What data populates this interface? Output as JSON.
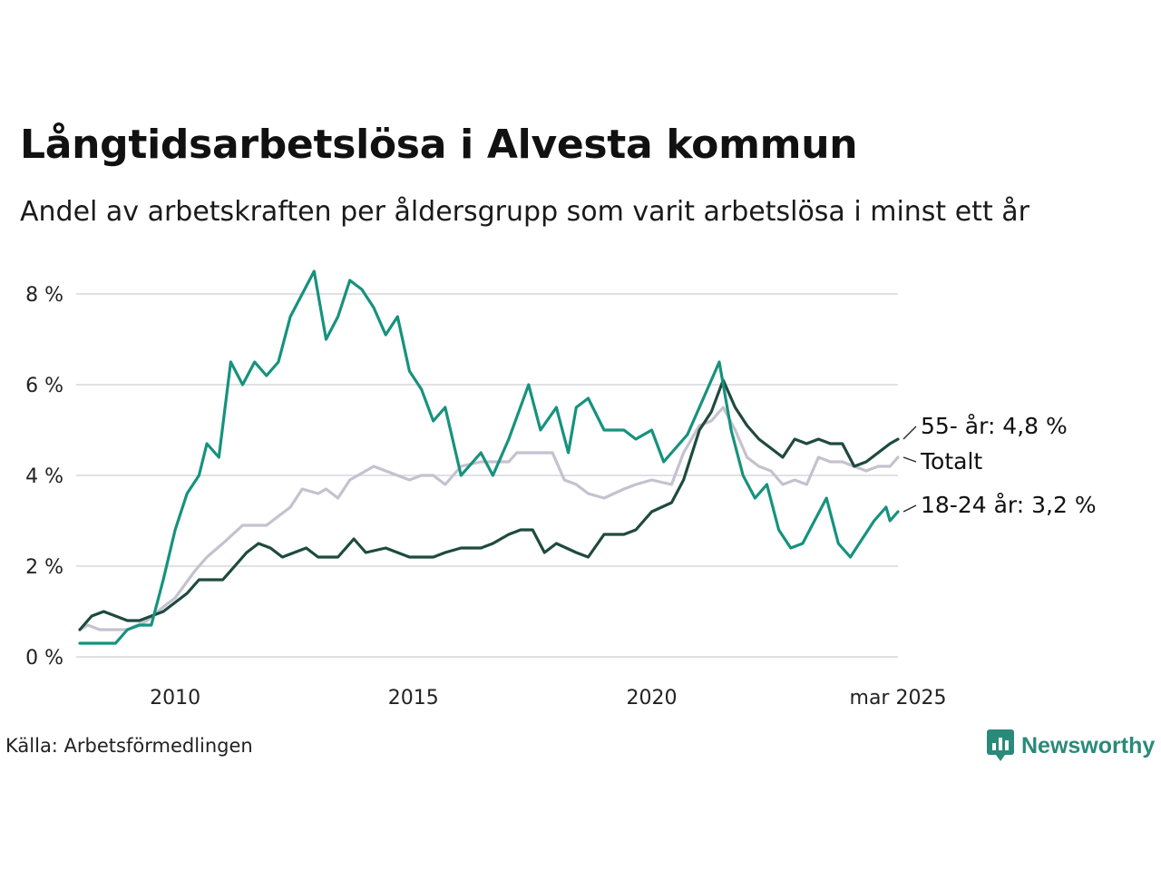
{
  "title": "Långtidsarbetslösa i Alvesta kommun",
  "subtitle": "Andel av arbetskraften per åldersgrupp som varit arbetslösa i minst ett år",
  "source": "Källa: Arbetsförmedlingen",
  "logo": {
    "text": "Newsworthy",
    "icon": "newsworthy-chart-bubble-icon",
    "color": "#2a8a7a"
  },
  "chart_data": {
    "type": "line",
    "x_axis": {
      "range": [
        "2008-01",
        "2025-03"
      ],
      "ticks": [
        {
          "label": "2010",
          "date": "2010-01"
        },
        {
          "label": "2015",
          "date": "2015-01"
        },
        {
          "label": "2020",
          "date": "2020-01"
        },
        {
          "label": "mar 2025",
          "date": "2025-03"
        }
      ]
    },
    "y_axis": {
      "range": [
        0,
        8.5
      ],
      "ticks": [
        {
          "value": 0,
          "label": "0 %"
        },
        {
          "value": 2,
          "label": "2 %"
        },
        {
          "value": 4,
          "label": "4 %"
        },
        {
          "value": 6,
          "label": "6 %"
        },
        {
          "value": 8,
          "label": "8 %"
        }
      ]
    },
    "grid": "horizontal",
    "legend": "end-of-line labels",
    "series": [
      {
        "name": "Totalt",
        "label": "Totalt",
        "color": "#c4c2cf",
        "points": [
          [
            "2008-01",
            0.6
          ],
          [
            "2008-03",
            0.7
          ],
          [
            "2008-06",
            0.6
          ],
          [
            "2009-01",
            0.6
          ],
          [
            "2009-06",
            0.8
          ],
          [
            "2009-10",
            1.1
          ],
          [
            "2010-01",
            1.3
          ],
          [
            "2010-06",
            1.9
          ],
          [
            "2010-09",
            2.2
          ],
          [
            "2011-01",
            2.5
          ],
          [
            "2011-06",
            2.9
          ],
          [
            "2011-12",
            2.9
          ],
          [
            "2012-03",
            3.1
          ],
          [
            "2012-06",
            3.3
          ],
          [
            "2012-09",
            3.7
          ],
          [
            "2013-01",
            3.6
          ],
          [
            "2013-03",
            3.7
          ],
          [
            "2013-06",
            3.5
          ],
          [
            "2013-09",
            3.9
          ],
          [
            "2014-01",
            4.1
          ],
          [
            "2014-03",
            4.2
          ],
          [
            "2014-06",
            4.1
          ],
          [
            "2014-12",
            3.9
          ],
          [
            "2015-03",
            4.0
          ],
          [
            "2015-06",
            4.0
          ],
          [
            "2015-09",
            3.8
          ],
          [
            "2016-01",
            4.2
          ],
          [
            "2016-06",
            4.3
          ],
          [
            "2017-01",
            4.3
          ],
          [
            "2017-03",
            4.5
          ],
          [
            "2017-06",
            4.5
          ],
          [
            "2017-12",
            4.5
          ],
          [
            "2018-03",
            3.9
          ],
          [
            "2018-06",
            3.8
          ],
          [
            "2018-09",
            3.6
          ],
          [
            "2019-01",
            3.5
          ],
          [
            "2019-06",
            3.7
          ],
          [
            "2019-09",
            3.8
          ],
          [
            "2020-01",
            3.9
          ],
          [
            "2020-06",
            3.8
          ],
          [
            "2020-09",
            4.5
          ],
          [
            "2021-01",
            5.1
          ],
          [
            "2021-04",
            5.2
          ],
          [
            "2021-07",
            5.5
          ],
          [
            "2021-10",
            5.0
          ],
          [
            "2022-01",
            4.4
          ],
          [
            "2022-04",
            4.2
          ],
          [
            "2022-07",
            4.1
          ],
          [
            "2022-10",
            3.8
          ],
          [
            "2023-01",
            3.9
          ],
          [
            "2023-04",
            3.8
          ],
          [
            "2023-07",
            4.4
          ],
          [
            "2023-10",
            4.3
          ],
          [
            "2024-01",
            4.3
          ],
          [
            "2024-04",
            4.2
          ],
          [
            "2024-07",
            4.1
          ],
          [
            "2024-10",
            4.2
          ],
          [
            "2025-01",
            4.2
          ],
          [
            "2025-03",
            4.4
          ]
        ]
      },
      {
        "name": "55- år",
        "label": "55- år: 4,8 %",
        "color": "#1f4a3e",
        "points": [
          [
            "2008-01",
            0.6
          ],
          [
            "2008-04",
            0.9
          ],
          [
            "2008-07",
            1.0
          ],
          [
            "2008-10",
            0.9
          ],
          [
            "2009-01",
            0.8
          ],
          [
            "2009-04",
            0.8
          ],
          [
            "2009-07",
            0.9
          ],
          [
            "2009-10",
            1.0
          ],
          [
            "2010-01",
            1.2
          ],
          [
            "2010-04",
            1.4
          ],
          [
            "2010-07",
            1.7
          ],
          [
            "2010-10",
            1.7
          ],
          [
            "2011-01",
            1.7
          ],
          [
            "2011-04",
            2.0
          ],
          [
            "2011-07",
            2.3
          ],
          [
            "2011-10",
            2.5
          ],
          [
            "2012-01",
            2.4
          ],
          [
            "2012-04",
            2.2
          ],
          [
            "2012-07",
            2.3
          ],
          [
            "2012-10",
            2.4
          ],
          [
            "2013-01",
            2.2
          ],
          [
            "2013-06",
            2.2
          ],
          [
            "2013-10",
            2.6
          ],
          [
            "2014-01",
            2.3
          ],
          [
            "2014-06",
            2.4
          ],
          [
            "2014-12",
            2.2
          ],
          [
            "2015-03",
            2.2
          ],
          [
            "2015-06",
            2.2
          ],
          [
            "2015-09",
            2.3
          ],
          [
            "2016-01",
            2.4
          ],
          [
            "2016-06",
            2.4
          ],
          [
            "2016-09",
            2.5
          ],
          [
            "2017-01",
            2.7
          ],
          [
            "2017-04",
            2.8
          ],
          [
            "2017-07",
            2.8
          ],
          [
            "2017-10",
            2.3
          ],
          [
            "2018-01",
            2.5
          ],
          [
            "2018-06",
            2.3
          ],
          [
            "2018-09",
            2.2
          ],
          [
            "2019-01",
            2.7
          ],
          [
            "2019-06",
            2.7
          ],
          [
            "2019-09",
            2.8
          ],
          [
            "2020-01",
            3.2
          ],
          [
            "2020-06",
            3.4
          ],
          [
            "2020-09",
            3.9
          ],
          [
            "2021-01",
            5.0
          ],
          [
            "2021-04",
            5.4
          ],
          [
            "2021-07",
            6.1
          ],
          [
            "2021-10",
            5.5
          ],
          [
            "2022-01",
            5.1
          ],
          [
            "2022-04",
            4.8
          ],
          [
            "2022-07",
            4.6
          ],
          [
            "2022-10",
            4.4
          ],
          [
            "2023-01",
            4.8
          ],
          [
            "2023-04",
            4.7
          ],
          [
            "2023-07",
            4.8
          ],
          [
            "2023-10",
            4.7
          ],
          [
            "2024-01",
            4.7
          ],
          [
            "2024-04",
            4.2
          ],
          [
            "2024-07",
            4.3
          ],
          [
            "2024-10",
            4.5
          ],
          [
            "2025-01",
            4.7
          ],
          [
            "2025-03",
            4.8
          ]
        ]
      },
      {
        "name": "18-24 år",
        "label": "18-24 år: 3,2 %",
        "color": "#16927e",
        "points": [
          [
            "2008-01",
            0.3
          ],
          [
            "2008-04",
            0.3
          ],
          [
            "2008-07",
            0.3
          ],
          [
            "2008-10",
            0.3
          ],
          [
            "2009-01",
            0.6
          ],
          [
            "2009-04",
            0.7
          ],
          [
            "2009-07",
            0.7
          ],
          [
            "2009-10",
            1.7
          ],
          [
            "2010-01",
            2.8
          ],
          [
            "2010-04",
            3.6
          ],
          [
            "2010-07",
            4.0
          ],
          [
            "2010-09",
            4.7
          ],
          [
            "2010-12",
            4.4
          ],
          [
            "2011-03",
            6.5
          ],
          [
            "2011-06",
            6.0
          ],
          [
            "2011-09",
            6.5
          ],
          [
            "2011-12",
            6.2
          ],
          [
            "2012-03",
            6.5
          ],
          [
            "2012-06",
            7.5
          ],
          [
            "2012-09",
            8.0
          ],
          [
            "2012-12",
            8.5
          ],
          [
            "2013-03",
            7.0
          ],
          [
            "2013-06",
            7.5
          ],
          [
            "2013-09",
            8.3
          ],
          [
            "2013-12",
            8.1
          ],
          [
            "2014-03",
            7.7
          ],
          [
            "2014-06",
            7.1
          ],
          [
            "2014-09",
            7.5
          ],
          [
            "2014-12",
            6.3
          ],
          [
            "2015-03",
            5.9
          ],
          [
            "2015-06",
            5.2
          ],
          [
            "2015-09",
            5.5
          ],
          [
            "2016-01",
            4.0
          ],
          [
            "2016-06",
            4.5
          ],
          [
            "2016-09",
            4.0
          ],
          [
            "2017-01",
            4.8
          ],
          [
            "2017-06",
            6.0
          ],
          [
            "2017-09",
            5.0
          ],
          [
            "2018-01",
            5.5
          ],
          [
            "2018-04",
            4.5
          ],
          [
            "2018-06",
            5.5
          ],
          [
            "2018-09",
            5.7
          ],
          [
            "2019-01",
            5.0
          ],
          [
            "2019-06",
            5.0
          ],
          [
            "2019-09",
            4.8
          ],
          [
            "2020-01",
            5.0
          ],
          [
            "2020-04",
            4.3
          ],
          [
            "2020-07",
            4.6
          ],
          [
            "2020-10",
            4.9
          ],
          [
            "2021-01",
            5.5
          ],
          [
            "2021-06",
            6.5
          ],
          [
            "2021-09",
            5.0
          ],
          [
            "2021-12",
            4.0
          ],
          [
            "2022-03",
            3.5
          ],
          [
            "2022-06",
            3.8
          ],
          [
            "2022-09",
            2.8
          ],
          [
            "2022-12",
            2.4
          ],
          [
            "2023-03",
            2.5
          ],
          [
            "2023-06",
            3.0
          ],
          [
            "2023-09",
            3.5
          ],
          [
            "2023-12",
            2.5
          ],
          [
            "2024-03",
            2.2
          ],
          [
            "2024-06",
            2.6
          ],
          [
            "2024-09",
            3.0
          ],
          [
            "2024-12",
            3.3
          ],
          [
            "2025-01",
            3.0
          ],
          [
            "2025-03",
            3.2
          ]
        ]
      }
    ]
  }
}
